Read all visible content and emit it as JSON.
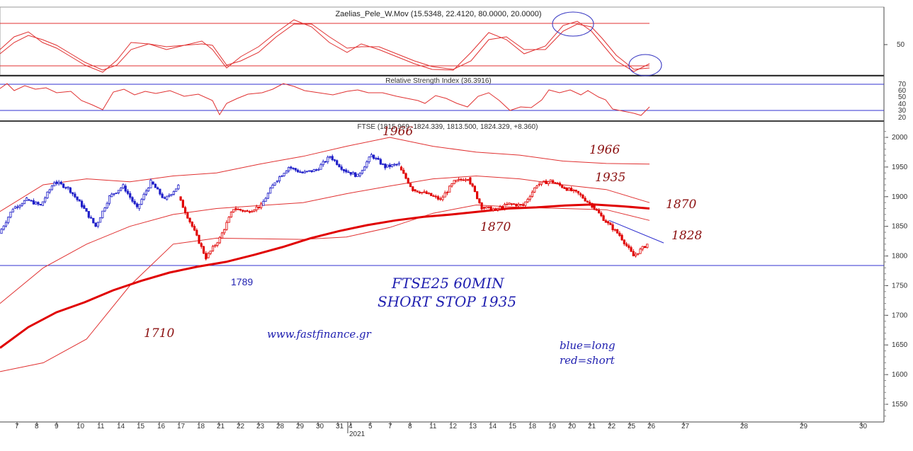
{
  "colors": {
    "long": "#1f1fc8",
    "short": "#e00000",
    "band": "#e03030",
    "ma": "#e00000",
    "support": "#3030d0",
    "annotation_red": "#8b1010",
    "annotation_blue": "#2020b0"
  },
  "chart_data": [
    {
      "type": "line",
      "title": "Zaelias_Pele_W.Mov (15.5348, 22.4120, 80.0000, 20.0000)",
      "ticks": [
        "50"
      ],
      "levels": [
        80,
        20
      ]
    },
    {
      "type": "line",
      "title": "Relative Strength Index (36.3916)",
      "ticks": [
        "70",
        "60",
        "50",
        "40",
        "30",
        "20"
      ],
      "levels": [
        70,
        30
      ]
    },
    {
      "type": "candlestick",
      "title": "FTSE (1815.969, 1824.339, 1813.500, 1824.329, +8.360)",
      "y_ticks": [
        "2000",
        "1950",
        "1900",
        "1850",
        "1800",
        "1750",
        "1700",
        "1650",
        "1600",
        "1550"
      ],
      "ylim": [
        1530,
        2010
      ],
      "x_ticks": [
        "7",
        "8",
        "9",
        "10",
        "11",
        "14",
        "15",
        "16",
        "17",
        "18",
        "21",
        "22",
        "23",
        "28",
        "29",
        "30",
        "31",
        "4",
        "5",
        "7",
        "8",
        "11",
        "12",
        "13",
        "14",
        "15",
        "18",
        "19",
        "20",
        "21",
        "22",
        "25",
        "26",
        "27",
        "28",
        "29",
        "30"
      ],
      "year_label": "2021",
      "support_level": 1784,
      "annotations": {
        "top_1966": "1966",
        "right_1966": "1966",
        "label_1935": "1935",
        "right_1870": "1870",
        "mid_1870": "1870",
        "label_1828": "1828",
        "label_1789": "1789",
        "label_1710": "1710",
        "title_line1": "FTSE25  60MIN",
        "title_line2": "SHORT STOP 1935",
        "website": "www.fastfinance.gr",
        "legend_long": "blue=long",
        "legend_short": "red=short"
      },
      "segments": [
        {
          "signal": "long",
          "from": 1838,
          "to": 1880
        },
        {
          "signal": "long",
          "from": 1880,
          "to": 1895
        },
        {
          "signal": "long",
          "from": 1895,
          "to": 1885
        },
        {
          "signal": "long",
          "from": 1885,
          "to": 1925
        },
        {
          "signal": "long",
          "from": 1925,
          "to": 1915
        },
        {
          "signal": "long",
          "from": 1915,
          "to": 1885
        },
        {
          "signal": "long",
          "from": 1885,
          "to": 1850
        },
        {
          "signal": "long",
          "from": 1850,
          "to": 1900
        },
        {
          "signal": "long",
          "from": 1900,
          "to": 1918
        },
        {
          "signal": "long",
          "from": 1918,
          "to": 1880
        },
        {
          "signal": "long",
          "from": 1880,
          "to": 1925
        },
        {
          "signal": "long",
          "from": 1925,
          "to": 1895
        },
        {
          "signal": "long",
          "from": 1895,
          "to": 1918
        },
        {
          "signal": "short",
          "from": 1900,
          "to": 1850
        },
        {
          "signal": "short",
          "from": 1850,
          "to": 1797
        },
        {
          "signal": "short",
          "from": 1797,
          "to": 1830
        },
        {
          "signal": "short",
          "from": 1830,
          "to": 1880
        },
        {
          "signal": "short",
          "from": 1880,
          "to": 1875
        },
        {
          "signal": "short",
          "from": 1875,
          "to": 1885
        },
        {
          "signal": "long",
          "from": 1885,
          "to": 1925
        },
        {
          "signal": "long",
          "from": 1925,
          "to": 1950
        },
        {
          "signal": "long",
          "from": 1950,
          "to": 1940
        },
        {
          "signal": "long",
          "from": 1940,
          "to": 1945
        },
        {
          "signal": "long",
          "from": 1945,
          "to": 1968
        },
        {
          "signal": "long",
          "from": 1968,
          "to": 1945
        },
        {
          "signal": "long",
          "from": 1945,
          "to": 1935
        },
        {
          "signal": "long",
          "from": 1935,
          "to": 1970
        },
        {
          "signal": "long",
          "from": 1970,
          "to": 1950
        },
        {
          "signal": "long",
          "from": 1950,
          "to": 1955
        },
        {
          "signal": "short",
          "from": 1950,
          "to": 1912
        },
        {
          "signal": "short",
          "from": 1912,
          "to": 1905
        },
        {
          "signal": "short",
          "from": 1905,
          "to": 1895
        },
        {
          "signal": "short",
          "from": 1895,
          "to": 1925
        },
        {
          "signal": "short",
          "from": 1925,
          "to": 1932
        },
        {
          "signal": "short",
          "from": 1932,
          "to": 1882
        },
        {
          "signal": "short",
          "from": 1882,
          "to": 1878
        },
        {
          "signal": "short",
          "from": 1878,
          "to": 1888
        },
        {
          "signal": "short",
          "from": 1888,
          "to": 1885
        },
        {
          "signal": "short",
          "from": 1885,
          "to": 1920
        },
        {
          "signal": "short",
          "from": 1920,
          "to": 1927
        },
        {
          "signal": "short",
          "from": 1927,
          "to": 1915
        },
        {
          "signal": "short",
          "from": 1915,
          "to": 1905
        },
        {
          "signal": "short",
          "from": 1905,
          "to": 1885
        },
        {
          "signal": "short",
          "from": 1885,
          "to": 1858
        },
        {
          "signal": "short",
          "from": 1858,
          "to": 1835
        },
        {
          "signal": "short",
          "from": 1835,
          "to": 1800
        },
        {
          "signal": "short",
          "from": 1800,
          "to": 1820
        }
      ],
      "ma": [
        1645,
        1680,
        1705,
        1722,
        1742,
        1758,
        1772,
        1782,
        1790,
        1802,
        1815,
        1830,
        1842,
        1852,
        1860,
        1866,
        1870,
        1875,
        1880,
        1882,
        1885,
        1887,
        1884,
        1880
      ],
      "upper_band": [
        1875,
        1920,
        1930,
        1925,
        1935,
        1940,
        1955,
        1968,
        1985,
        2000,
        1985,
        1975,
        1970,
        1960,
        1956,
        1955
      ],
      "lower_band": [
        1605,
        1620,
        1660,
        1750,
        1820,
        1830,
        1829,
        1828,
        1832,
        1848,
        1872,
        1886,
        1882,
        1880,
        1878,
        1860
      ],
      "mid_band": [
        1720,
        1780,
        1820,
        1850,
        1870,
        1880,
        1885,
        1890,
        1905,
        1918,
        1930,
        1935,
        1930,
        1920,
        1912,
        1890
      ],
      "trendline": [
        1860,
        1822
      ]
    }
  ]
}
